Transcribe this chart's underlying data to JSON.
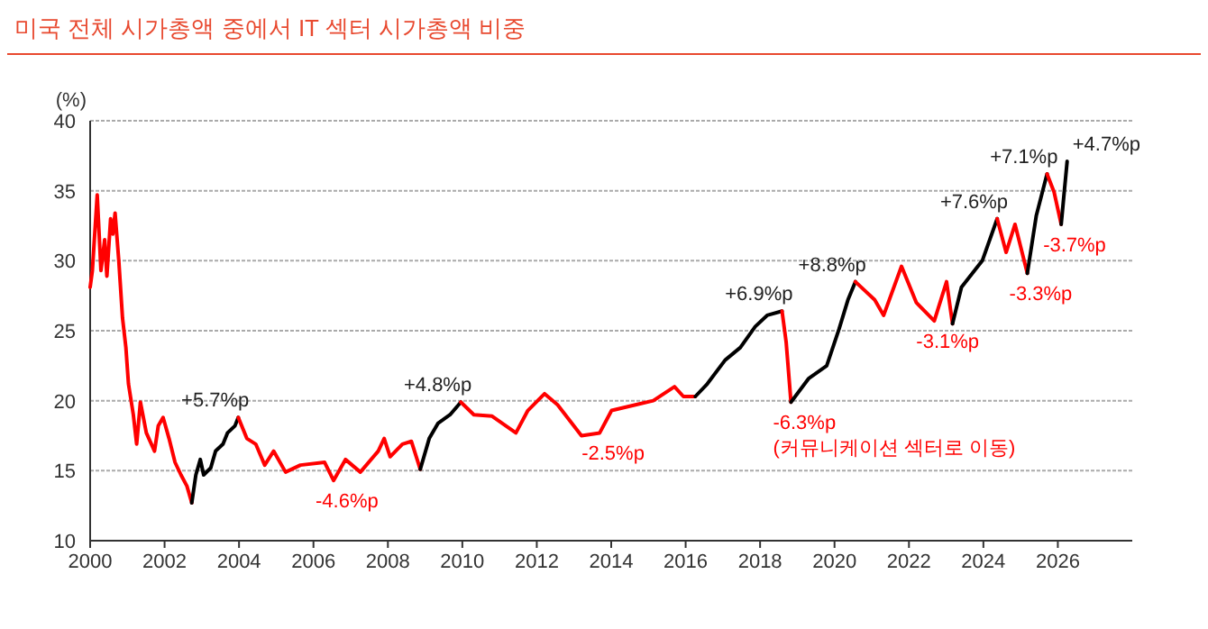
{
  "chart_data": {
    "type": "line",
    "title": "미국 전체 시가총액 중에서 IT 섹터 시가총액 비중",
    "ylabel": "(%)",
    "xlim": [
      2000,
      2028
    ],
    "xticks": [
      2000,
      2002,
      2004,
      2006,
      2008,
      2010,
      2012,
      2014,
      2016,
      2018,
      2020,
      2022,
      2024,
      2026
    ],
    "ylim": [
      10,
      40
    ],
    "yticks": [
      10,
      15,
      20,
      25,
      30,
      35,
      40
    ],
    "grid": "y",
    "marker": "none",
    "line_style": "solid",
    "series": [
      {
        "color": "#ff0000",
        "x": [
          2000.0,
          2000.06,
          2000.19,
          2000.29,
          2000.39,
          2000.45,
          2000.55,
          2000.61,
          2000.67,
          2000.77,
          2000.87,
          2000.96,
          2001.03,
          2001.16,
          2001.25,
          2001.35,
          2001.51,
          2001.73,
          2001.83,
          2001.96,
          2002.12,
          2002.28,
          2002.44,
          2002.6,
          2002.73
        ],
        "values": [
          28.1,
          29.3,
          34.7,
          29.3,
          31.5,
          28.9,
          33.0,
          31.9,
          33.4,
          30.0,
          25.9,
          23.8,
          21.2,
          19.0,
          16.9,
          19.9,
          17.7,
          16.4,
          18.2,
          18.8,
          17.3,
          15.6,
          14.7,
          13.9,
          12.7
        ]
      },
      {
        "color": "#000000",
        "x": [
          2002.73,
          2002.84,
          2002.96,
          2003.05,
          2003.24,
          2003.37,
          2003.57,
          2003.69,
          2003.89,
          2003.98
        ],
        "values": [
          12.7,
          14.7,
          15.8,
          14.7,
          15.2,
          16.4,
          16.9,
          17.7,
          18.2,
          18.8
        ]
      },
      {
        "color": "#ff0000",
        "x": [
          2003.98,
          2004.21,
          2004.45,
          2004.69,
          2004.93,
          2005.25,
          2005.65,
          2006.3,
          2006.54,
          2006.86,
          2007.26,
          2007.74,
          2007.9,
          2008.06,
          2008.39,
          2008.63,
          2008.87
        ],
        "values": [
          18.8,
          17.3,
          16.9,
          15.4,
          16.4,
          14.9,
          15.4,
          15.6,
          14.3,
          15.8,
          14.9,
          16.4,
          17.3,
          16.0,
          16.9,
          17.1,
          15.1
        ]
      },
      {
        "color": "#000000",
        "x": [
          2008.87,
          2009.11,
          2009.35,
          2009.67,
          2009.96
        ],
        "values": [
          15.1,
          17.3,
          18.4,
          19.0,
          19.9
        ]
      },
      {
        "color": "#ff0000",
        "x": [
          2009.96,
          2010.31,
          2010.8,
          2011.44,
          2011.76,
          2012.21,
          2012.56,
          2013.2,
          2013.69,
          2014.01,
          2014.65,
          2015.13,
          2015.7,
          2015.94,
          2016.26
        ],
        "values": [
          19.9,
          19.0,
          18.9,
          17.7,
          19.3,
          20.5,
          19.7,
          17.5,
          17.7,
          19.3,
          19.7,
          20.0,
          21.0,
          20.3,
          20.3
        ]
      },
      {
        "color": "#000000",
        "x": [
          2016.26,
          2016.58,
          2017.06,
          2017.47,
          2017.87,
          2018.19,
          2018.59
        ],
        "values": [
          20.3,
          21.2,
          22.9,
          23.8,
          25.3,
          26.1,
          26.4
        ]
      },
      {
        "color": "#ff0000",
        "x": [
          2018.59,
          2018.7,
          2018.83
        ],
        "values": [
          26.4,
          24.2,
          19.9
        ]
      },
      {
        "color": "#000000",
        "x": [
          2018.83,
          2019.31,
          2019.79,
          2020.12,
          2020.36,
          2020.56
        ],
        "values": [
          19.9,
          21.6,
          22.5,
          25.1,
          27.2,
          28.5
        ]
      },
      {
        "color": "#ff0000",
        "x": [
          2020.56,
          2021.08,
          2021.32,
          2021.8,
          2022.2,
          2022.68,
          2023.01,
          2023.17
        ],
        "values": [
          28.5,
          27.2,
          26.1,
          29.6,
          27.0,
          25.7,
          28.5,
          25.5
        ]
      },
      {
        "color": "#000000",
        "x": [
          2023.17,
          2023.41,
          2023.97,
          2024.37
        ],
        "values": [
          25.5,
          28.1,
          30.0,
          33.0
        ]
      },
      {
        "color": "#ff0000",
        "x": [
          2024.37,
          2024.61,
          2024.85,
          2025.18
        ],
        "values": [
          33.0,
          30.6,
          32.6,
          29.1
        ]
      },
      {
        "color": "#000000",
        "x": [
          2025.18,
          2025.42,
          2025.71
        ],
        "values": [
          29.1,
          33.2,
          36.2
        ]
      },
      {
        "color": "#ff0000",
        "x": [
          2025.71,
          2025.9,
          2026.09
        ],
        "values": [
          36.2,
          34.9,
          32.6
        ]
      },
      {
        "color": "#000000",
        "x": [
          2026.09,
          2026.25
        ],
        "values": [
          32.6,
          37.1
        ]
      }
    ],
    "annotations": [
      {
        "text": "+5.7%p",
        "x": 2003.98,
        "y": 18.8
      },
      {
        "text": "-4.6%p",
        "x": 2006.54,
        "y": 14.3
      },
      {
        "text": "+4.8%p",
        "x": 2009.96,
        "y": 19.9
      },
      {
        "text": "-2.5%p",
        "x": 2013.69,
        "y": 17.7
      },
      {
        "text": "+6.9%p",
        "x": 2018.59,
        "y": 26.4
      },
      {
        "text": "-6.3%p\n(커뮤니케이션 섹터로 이동)",
        "x": 2018.83,
        "y": 19.9
      },
      {
        "text": "+8.8%p",
        "x": 2020.56,
        "y": 28.5
      },
      {
        "text": "-3.1%p",
        "x": 2022.68,
        "y": 25.7
      },
      {
        "text": "+7.6%p",
        "x": 2024.37,
        "y": 33.0
      },
      {
        "text": "-3.3%p",
        "x": 2025.18,
        "y": 29.1
      },
      {
        "text": "+7.1%p",
        "x": 2025.71,
        "y": 36.2
      },
      {
        "text": "-3.7%p",
        "x": 2026.09,
        "y": 32.6
      },
      {
        "text": "+4.7%p",
        "x": 2026.25,
        "y": 37.1
      }
    ]
  }
}
